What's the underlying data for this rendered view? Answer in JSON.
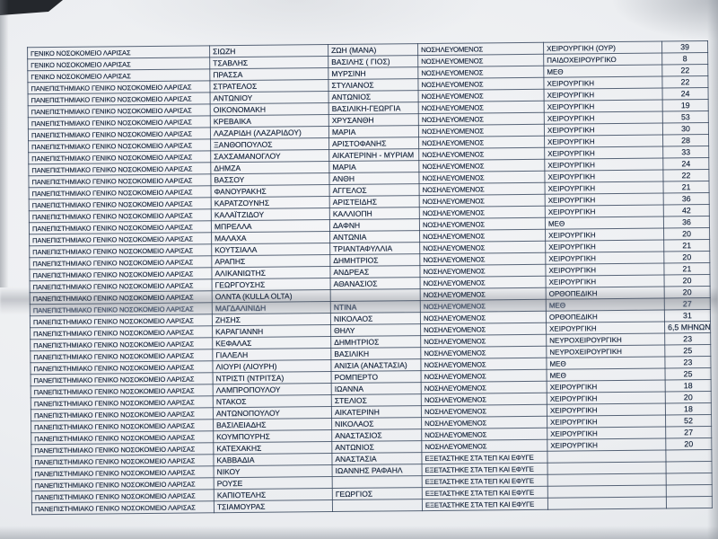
{
  "table": {
    "fields": [
      "hospital",
      "surname",
      "first_name",
      "status",
      "department",
      "value"
    ],
    "rows": [
      {
        "hospital": "ΓΕΝΙΚΟ ΝΟΣΟΚΟΜΕΙΟ ΛΑΡΙΣΑΣ",
        "surname": "ΣΙΩΖΗ",
        "first_name": "ΖΩΗ (ΜΑΝΑ)",
        "status": "ΝΟΣΗΛΕΥΟΜΕΝΟΣ",
        "department": "ΧΕΙΡΟΥΡΓΙΚΗ (ΟΥΡ)",
        "value": "39"
      },
      {
        "hospital": "ΓΕΝΙΚΟ ΝΟΣΟΚΟΜΕΙΟ ΛΑΡΙΣΑΣ",
        "surname": "ΤΣΑΒΛΗΣ",
        "first_name": "ΒΑΣΙΛΗΣ ( ΓΙΟΣ)",
        "status": "ΝΟΣΗΛΕΥΟΜΕΝΟΣ",
        "department": "ΠΑΙΔΟΧΕΙΡΟΥΡΓΙΚΟ",
        "value": "8"
      },
      {
        "hospital": "ΓΕΝΙΚΟ ΝΟΣΟΚΟΜΕΙΟ ΛΑΡΙΣΑΣ",
        "surname": "ΠΡΑΣΣΑ",
        "first_name": "ΜΥΡΣΙΝΗ",
        "status": "ΝΟΣΗΛΕΥΟΜΕΝΟΣ",
        "department": "ΜΕΘ",
        "value": "22"
      },
      {
        "hospital": "ΠΑΝΕΠΙΣΤΗΜΙΑΚΟ ΓΕΝΙΚΟ ΝΟΣΟΚΟΜΕΙΟ ΛΑΡΙΣΑΣ",
        "surname": "ΣΤΡΑΤΕΛΟΣ",
        "first_name": "ΣΤΥΛΙΑΝΟΣ",
        "status": "ΝΟΣΗΛΕΥΟΜΕΝΟΣ",
        "department": "ΧΕΙΡΟΥΡΓΙΚΗ",
        "value": "22"
      },
      {
        "hospital": "ΠΑΝΕΠΙΣΤΗΜΙΑΚΟ ΓΕΝΙΚΟ ΝΟΣΟΚΟΜΕΙΟ ΛΑΡΙΣΑΣ",
        "surname": "ΑΝΤΩΝΙΟΥ",
        "first_name": "ΑΝΤΩΝΙΟΣ",
        "status": "ΝΟΣΗΛΕΥΟΜΕΝΟΣ",
        "department": "ΧΕΙΡΟΥΡΓΙΚΗ",
        "value": "24"
      },
      {
        "hospital": "ΠΑΝΕΠΙΣΤΗΜΙΑΚΟ ΓΕΝΙΚΟ ΝΟΣΟΚΟΜΕΙΟ ΛΑΡΙΣΑΣ",
        "surname": "ΟΙΚΟΝΟΜΑΚΗ",
        "first_name": "ΒΑΣΙΛΙΚΗ-ΓΕΩΡΓΙΑ",
        "status": "ΝΟΣΗΛΕΥΟΜΕΝΟΣ",
        "department": "ΧΕΙΡΟΥΡΓΙΚΗ",
        "value": "19"
      },
      {
        "hospital": "ΠΑΝΕΠΙΣΤΗΜΙΑΚΟ ΓΕΝΙΚΟ ΝΟΣΟΚΟΜΕΙΟ ΛΑΡΙΣΑΣ",
        "surname": "ΚΡΕΒΑΙΚΑ",
        "first_name": "ΧΡΥΣΑΝΘΗ",
        "status": "ΝΟΣΗΛΕΥΟΜΕΝΟΣ",
        "department": "ΧΕΙΡΟΥΡΓΙΚΗ",
        "value": "53"
      },
      {
        "hospital": "ΠΑΝΕΠΙΣΤΗΜΙΑΚΟ ΓΕΝΙΚΟ ΝΟΣΟΚΟΜΕΙΟ ΛΑΡΙΣΑΣ",
        "surname": "ΛΑΖΑΡΙΔΗ (ΛΑΖΑΡΙΔΟΥ)",
        "first_name": "ΜΑΡΙΑ",
        "status": "ΝΟΣΗΛΕΥΟΜΕΝΟΣ",
        "department": "ΧΕΙΡΟΥΡΓΙΚΗ",
        "value": "30"
      },
      {
        "hospital": "ΠΑΝΕΠΙΣΤΗΜΙΑΚΟ ΓΕΝΙΚΟ ΝΟΣΟΚΟΜΕΙΟ ΛΑΡΙΣΑΣ",
        "surname": "ΞΑΝΘΟΠΟΥΛΟΣ",
        "first_name": "ΑΡΙΣΤΟΦΑΝΗΣ",
        "status": "ΝΟΣΗΛΕΥΟΜΕΝΟΣ",
        "department": "ΧΕΙΡΟΥΡΓΙΚΗ",
        "value": "28"
      },
      {
        "hospital": "ΠΑΝΕΠΙΣΤΗΜΙΑΚΟ ΓΕΝΙΚΟ ΝΟΣΟΚΟΜΕΙΟ ΛΑΡΙΣΑΣ",
        "surname": "ΣΑΧΣΑΜΑΝΟΓΛΟΥ",
        "first_name": "ΑΙΚΑΤΕΡΙΝΗ - ΜΥΡΙΑΜ",
        "status": "ΝΟΣΗΛΕΥΟΜΕΝΟΣ",
        "department": "ΧΕΙΡΟΥΡΓΙΚΗ",
        "value": "33"
      },
      {
        "hospital": "ΠΑΝΕΠΙΣΤΗΜΙΑΚΟ ΓΕΝΙΚΟ ΝΟΣΟΚΟΜΕΙΟ ΛΑΡΙΣΑΣ",
        "surname": "ΔΗΜΖΑ",
        "first_name": "ΜΑΡΙΑ",
        "status": "ΝΟΣΗΛΕΥΟΜΕΝΟΣ",
        "department": "ΧΕΙΡΟΥΡΓΙΚΗ",
        "value": "24"
      },
      {
        "hospital": "ΠΑΝΕΠΙΣΤΗΜΙΑΚΟ ΓΕΝΙΚΟ ΝΟΣΟΚΟΜΕΙΟ ΛΑΡΙΣΑΣ",
        "surname": "ΒΑΣΣΟΥ",
        "first_name": "ΑΝΘΗ",
        "status": "ΝΟΣΗΛΕΥΟΜΕΝΟΣ",
        "department": "ΧΕΙΡΟΥΡΓΙΚΗ",
        "value": "22"
      },
      {
        "hospital": "ΠΑΝΕΠΙΣΤΗΜΙΑΚΟ ΓΕΝΙΚΟ ΝΟΣΟΚΟΜΕΙΟ ΛΑΡΙΣΑΣ",
        "surname": "ΦΑΝΟΥΡΑΚΗΣ",
        "first_name": "ΑΓΓΕΛΟΣ",
        "status": "ΝΟΣΗΛΕΥΟΜΕΝΟΣ",
        "department": "ΧΕΙΡΟΥΡΓΙΚΗ",
        "value": "21"
      },
      {
        "hospital": "ΠΑΝΕΠΙΣΤΗΜΙΑΚΟ ΓΕΝΙΚΟ ΝΟΣΟΚΟΜΕΙΟ ΛΑΡΙΣΑΣ",
        "surname": "ΚΑΡΑΤΖΟΥΝΗΣ",
        "first_name": "ΑΡΙΣΤΕΙΔΗΣ",
        "status": "ΝΟΣΗΛΕΥΟΜΕΝΟΣ",
        "department": "ΧΕΙΡΟΥΡΓΙΚΗ",
        "value": "36"
      },
      {
        "hospital": "ΠΑΝΕΠΙΣΤΗΜΙΑΚΟ ΓΕΝΙΚΟ ΝΟΣΟΚΟΜΕΙΟ ΛΑΡΙΣΑΣ",
        "surname": "ΚΑΛΑΪΤΖΙΔΟΥ",
        "first_name": "ΚΑΛΛΙΟΠΗ",
        "status": "ΝΟΣΗΛΕΥΟΜΕΝΟΣ",
        "department": "ΧΕΙΡΟΥΡΓΙΚΗ",
        "value": "42"
      },
      {
        "hospital": "ΠΑΝΕΠΙΣΤΗΜΙΑΚΟ ΓΕΝΙΚΟ ΝΟΣΟΚΟΜΕΙΟ ΛΑΡΙΣΑΣ",
        "surname": "ΜΠΡΕΛΛΑ",
        "first_name": "ΔΑΦΝΗ",
        "status": "ΝΟΣΗΛΕΥΟΜΕΝΟΣ",
        "department": "ΜΕΘ",
        "value": "36"
      },
      {
        "hospital": "ΠΑΝΕΠΙΣΤΗΜΙΑΚΟ ΓΕΝΙΚΟ ΝΟΣΟΚΟΜΕΙΟ ΛΑΡΙΣΑΣ",
        "surname": "ΜΑΛΑΧΑ",
        "first_name": "ΑΝΤΩΝΙΑ",
        "status": "ΝΟΣΗΛΕΥΟΜΕΝΟΣ",
        "department": "ΧΕΙΡΟΥΡΓΙΚΗ",
        "value": "20"
      },
      {
        "hospital": "ΠΑΝΕΠΙΣΤΗΜΙΑΚΟ ΓΕΝΙΚΟ ΝΟΣΟΚΟΜΕΙΟ ΛΑΡΙΣΑΣ",
        "surname": "ΚΟΥΤΣΙΑΛΑ",
        "first_name": "ΤΡΙΑΝΤΑΦΥΛΛΙΑ",
        "status": "ΝΟΣΗΛΕΥΟΜΕΝΟΣ",
        "department": "ΧΕΙΡΟΥΡΓΙΚΗ",
        "value": "21"
      },
      {
        "hospital": "ΠΑΝΕΠΙΣΤΗΜΙΑΚΟ ΓΕΝΙΚΟ ΝΟΣΟΚΟΜΕΙΟ ΛΑΡΙΣΑΣ",
        "surname": "ΑΡΑΠΗΣ",
        "first_name": "ΔΗΜΗΤΡΙΟΣ",
        "status": "ΝΟΣΗΛΕΥΟΜΕΝΟΣ",
        "department": "ΧΕΙΡΟΥΡΓΙΚΗ",
        "value": "20"
      },
      {
        "hospital": "ΠΑΝΕΠΙΣΤΗΜΙΑΚΟ ΓΕΝΙΚΟ ΝΟΣΟΚΟΜΕΙΟ ΛΑΡΙΣΑΣ",
        "surname": "ΑΛΙΚΑΝΙΩΤΗΣ",
        "first_name": "ΑΝΔΡΕΑΣ",
        "status": "ΝΟΣΗΛΕΥΟΜΕΝΟΣ",
        "department": "ΧΕΙΡΟΥΡΓΙΚΗ",
        "value": "21"
      },
      {
        "hospital": "ΠΑΝΕΠΙΣΤΗΜΙΑΚΟ ΓΕΝΙΚΟ ΝΟΣΟΚΟΜΕΙΟ ΛΑΡΙΣΑΣ",
        "surname": "ΓΕΩΡΓΟΥΣΗΣ",
        "first_name": "ΑΘΑΝΑΣΙΟΣ",
        "status": "ΝΟΣΗΛΕΥΟΜΕΝΟΣ",
        "department": "ΧΕΙΡΟΥΡΓΙΚΗ",
        "value": "20"
      },
      {
        "hospital": "ΠΑΝΕΠΙΣΤΗΜΙΑΚΟ ΓΕΝΙΚΟ ΝΟΣΟΚΟΜΕΙΟ ΛΑΡΙΣΑΣ",
        "surname": "ΟΛΝΤΑ (KULLA OLTA)",
        "first_name": "",
        "status": "ΝΟΣΗΛΕΥΟΜΕΝΟΣ",
        "department": "ΟΡΘΟΠΕΔΙΚΗ",
        "value": "20"
      },
      {
        "hospital": "ΠΑΝΕΠΙΣΤΗΜΙΑΚΟ ΓΕΝΙΚΟ ΝΟΣΟΚΟΜΕΙΟ ΛΑΡΙΣΑΣ",
        "surname": "ΜΑΓΔΑΛΙΝΙΔΗ",
        "first_name": "ΝΤΙΝΑ",
        "status": "ΝΟΣΗΛΕΥΟΜΕΝΟΣ",
        "department": "ΜΕΘ",
        "value": "27"
      },
      {
        "hospital": "ΠΑΝΕΠΙΣΤΗΜΙΑΚΟ ΓΕΝΙΚΟ ΝΟΣΟΚΟΜΕΙΟ ΛΑΡΙΣΑΣ",
        "surname": "ΖΗΣΗΣ",
        "first_name": "ΝΙΚΟΛΑΟΣ",
        "status": "ΝΟΣΗΛΕΥΟΜΕΝΟΣ",
        "department": "ΟΡΘΟΠΕΔΙΚΗ",
        "value": "31"
      },
      {
        "hospital": "ΠΑΝΕΠΙΣΤΗΜΙΑΚΟ ΓΕΝΙΚΟ ΝΟΣΟΚΟΜΕΙΟ ΛΑΡΙΣΑΣ",
        "surname": "ΚΑΡΑΓΙΑΝΝΗ",
        "first_name": "ΘΗΛΥ",
        "status": "ΝΟΣΗΛΕΥΟΜΕΝΟΣ",
        "department": "ΧΕΙΡΟΥΡΓΙΚΗ",
        "value": "6,5 ΜΗΝΩΝ"
      },
      {
        "hospital": "ΠΑΝΕΠΙΣΤΗΜΙΑΚΟ ΓΕΝΙΚΟ ΝΟΣΟΚΟΜΕΙΟ ΛΑΡΙΣΑΣ",
        "surname": "ΚΕΦΑΛΑΣ",
        "first_name": "ΔΗΜΗΤΡΙΟΣ",
        "status": "ΝΟΣΗΛΕΥΟΜΕΝΟΣ",
        "department": "ΝΕΥΡΟΧΕΙΡΟΥΡΓΙΚΗ",
        "value": "23"
      },
      {
        "hospital": "ΠΑΝΕΠΙΣΤΗΜΙΑΚΟ ΓΕΝΙΚΟ ΝΟΣΟΚΟΜΕΙΟ ΛΑΡΙΣΑΣ",
        "surname": "ΓΙΑΛΕΛΗ",
        "first_name": "ΒΑΣΙΛΙΚΗ",
        "status": "ΝΟΣΗΛΕΥΟΜΕΝΟΣ",
        "department": "ΝΕΥΡΟΧΕΙΡΟΥΡΓΙΚΗ",
        "value": "25"
      },
      {
        "hospital": "ΠΑΝΕΠΙΣΤΗΜΙΑΚΟ ΓΕΝΙΚΟ ΝΟΣΟΚΟΜΕΙΟ ΛΑΡΙΣΑΣ",
        "surname": "ΛΙΟΥΡΙ (ΛΙΟΥΡΗ)",
        "first_name": "ΑΝΙΣΙΑ (ΑΝΑΣΤΑΣΙΑ)",
        "status": "ΝΟΣΗΛΕΥΟΜΕΝΟΣ",
        "department": "ΜΕΘ",
        "value": "23"
      },
      {
        "hospital": "ΠΑΝΕΠΙΣΤΗΜΙΑΚΟ ΓΕΝΙΚΟ ΝΟΣΟΚΟΜΕΙΟ ΛΑΡΙΣΑΣ",
        "surname": "ΝΤΡΙΣΤΙ (ΝΤΡΙΤΣΑ)",
        "first_name": "ΡΟΜΠΕΡΤΟ",
        "status": "ΝΟΣΗΛΕΥΟΜΕΝΟΣ",
        "department": "ΜΕΘ",
        "value": "25"
      },
      {
        "hospital": "ΠΑΝΕΠΙΣΤΗΜΙΑΚΟ ΓΕΝΙΚΟ ΝΟΣΟΚΟΜΕΙΟ ΛΑΡΙΣΑΣ",
        "surname": "ΛΑΜΠΡΟΠΟΥΛΟΥ",
        "first_name": "ΙΩΑΝΝΑ",
        "status": "ΝΟΣΗΛΕΥΟΜΕΝΟΣ",
        "department": "ΧΕΙΡΟΥΡΓΙΚΗ",
        "value": "18"
      },
      {
        "hospital": "ΠΑΝΕΠΙΣΤΗΜΙΑΚΟ ΓΕΝΙΚΟ ΝΟΣΟΚΟΜΕΙΟ ΛΑΡΙΣΑΣ",
        "surname": "ΝΤΑΚΟΣ",
        "first_name": "ΣΤΕΛΙΟΣ",
        "status": "ΝΟΣΗΛΕΥΟΜΕΝΟΣ",
        "department": "ΧΕΙΡΟΥΡΓΙΚΗ",
        "value": "20"
      },
      {
        "hospital": "ΠΑΝΕΠΙΣΤΗΜΙΑΚΟ ΓΕΝΙΚΟ ΝΟΣΟΚΟΜΕΙΟ ΛΑΡΙΣΑΣ",
        "surname": "ΑΝΤΩΝΟΠΟΥΛΟΥ",
        "first_name": "ΑΙΚΑΤΕΡΙΝΗ",
        "status": "ΝΟΣΗΛΕΥΟΜΕΝΟΣ",
        "department": "ΧΕΙΡΟΥΡΓΙΚΗ",
        "value": "18"
      },
      {
        "hospital": "ΠΑΝΕΠΙΣΤΗΜΙΑΚΟ ΓΕΝΙΚΟ ΝΟΣΟΚΟΜΕΙΟ ΛΑΡΙΣΑΣ",
        "surname": "ΒΑΣΙΛΕΙΑΔΗΣ",
        "first_name": "ΝΙΚΟΛΑΟΣ",
        "status": "ΝΟΣΗΛΕΥΟΜΕΝΟΣ",
        "department": "ΧΕΙΡΟΥΡΓΙΚΗ",
        "value": "52"
      },
      {
        "hospital": "ΠΑΝΕΠΙΣΤΗΜΙΑΚΟ ΓΕΝΙΚΟ ΝΟΣΟΚΟΜΕΙΟ ΛΑΡΙΣΑΣ",
        "surname": "ΚΟΥΜΠΟΥΡΗΣ",
        "first_name": "ΑΝΑΣΤΑΣΙΟΣ",
        "status": "ΝΟΣΗΛΕΥΟΜΕΝΟΣ",
        "department": "ΧΕΙΡΟΥΡΓΙΚΗ",
        "value": "27"
      },
      {
        "hospital": "ΠΑΝΕΠΙΣΤΗΜΙΑΚΟ ΓΕΝΙΚΟ ΝΟΣΟΚΟΜΕΙΟ ΛΑΡΙΣΑΣ",
        "surname": "ΚΑΤΕΧΑΚΗΣ",
        "first_name": "ΑΝΤΩΝΙΟΣ",
        "status": "ΝΟΣΗΛΕΥΟΜΕΝΟΣ",
        "department": "ΧΕΙΡΟΥΡΓΙΚΗ",
        "value": "20"
      },
      {
        "hospital": "ΠΑΝΕΠΙΣΤΗΜΙΑΚΟ ΓΕΝΙΚΟ ΝΟΣΟΚΟΜΕΙΟ ΛΑΡΙΣΑΣ",
        "surname": "ΚΑΒΒΑΔΙΑ",
        "first_name": "ΑΝΑΣΤΑΣΙΑ",
        "status": "ΕΞΕΤΑΣΤΗΚΕ ΣΤΑ ΤΕΠ ΚΑΙ ΕΦΥΓΕ",
        "department": "",
        "value": ""
      },
      {
        "hospital": "ΠΑΝΕΠΙΣΤΗΜΙΑΚΟ ΓΕΝΙΚΟ ΝΟΣΟΚΟΜΕΙΟ ΛΑΡΙΣΑΣ",
        "surname": "ΝΙΚΟΥ",
        "first_name": "ΙΩΑΝΝΗΣ ΡΑΦΑΗΛ",
        "status": "ΕΞΕΤΑΣΤΗΚΕ ΣΤΑ ΤΕΠ ΚΑΙ ΕΦΥΓΕ",
        "department": "",
        "value": ""
      },
      {
        "hospital": "ΠΑΝΕΠΙΣΤΗΜΙΑΚΟ ΓΕΝΙΚΟ ΝΟΣΟΚΟΜΕΙΟ ΛΑΡΙΣΑΣ",
        "surname": "ΡΟΥΣΕ",
        "first_name": "",
        "status": "ΕΞΕΤΑΣΤΗΚΕ ΣΤΑ ΤΕΠ ΚΑΙ ΕΦΥΓΕ",
        "department": "",
        "value": ""
      },
      {
        "hospital": "ΠΑΝΕΠΙΣΤΗΜΙΑΚΟ ΓΕΝΙΚΟ ΝΟΣΟΚΟΜΕΙΟ ΛΑΡΙΣΑΣ",
        "surname": "ΚΑΠΙΟΤΕΛΗΣ",
        "first_name": "ΓΕΩΡΓΙΟΣ",
        "status": "ΕΞΕΤΑΣΤΗΚΕ ΣΤΑ ΤΕΠ ΚΑΙ ΕΦΥΓΕ",
        "department": "",
        "value": ""
      },
      {
        "hospital": "ΠΑΝΕΠΙΣΤΗΜΙΑΚΟ ΓΕΝΙΚΟ ΝΟΣΟΚΟΜΕΙΟ ΛΑΡΙΣΑΣ",
        "surname": "ΤΣΙΑΜΟΥΡΑΣ",
        "first_name": "",
        "status": "ΕΞΕΤΑΣΤΗΚΕ ΣΤΑ ΤΕΠ ΚΑΙ ΕΦΥΓΕ",
        "department": "",
        "value": ""
      }
    ]
  }
}
